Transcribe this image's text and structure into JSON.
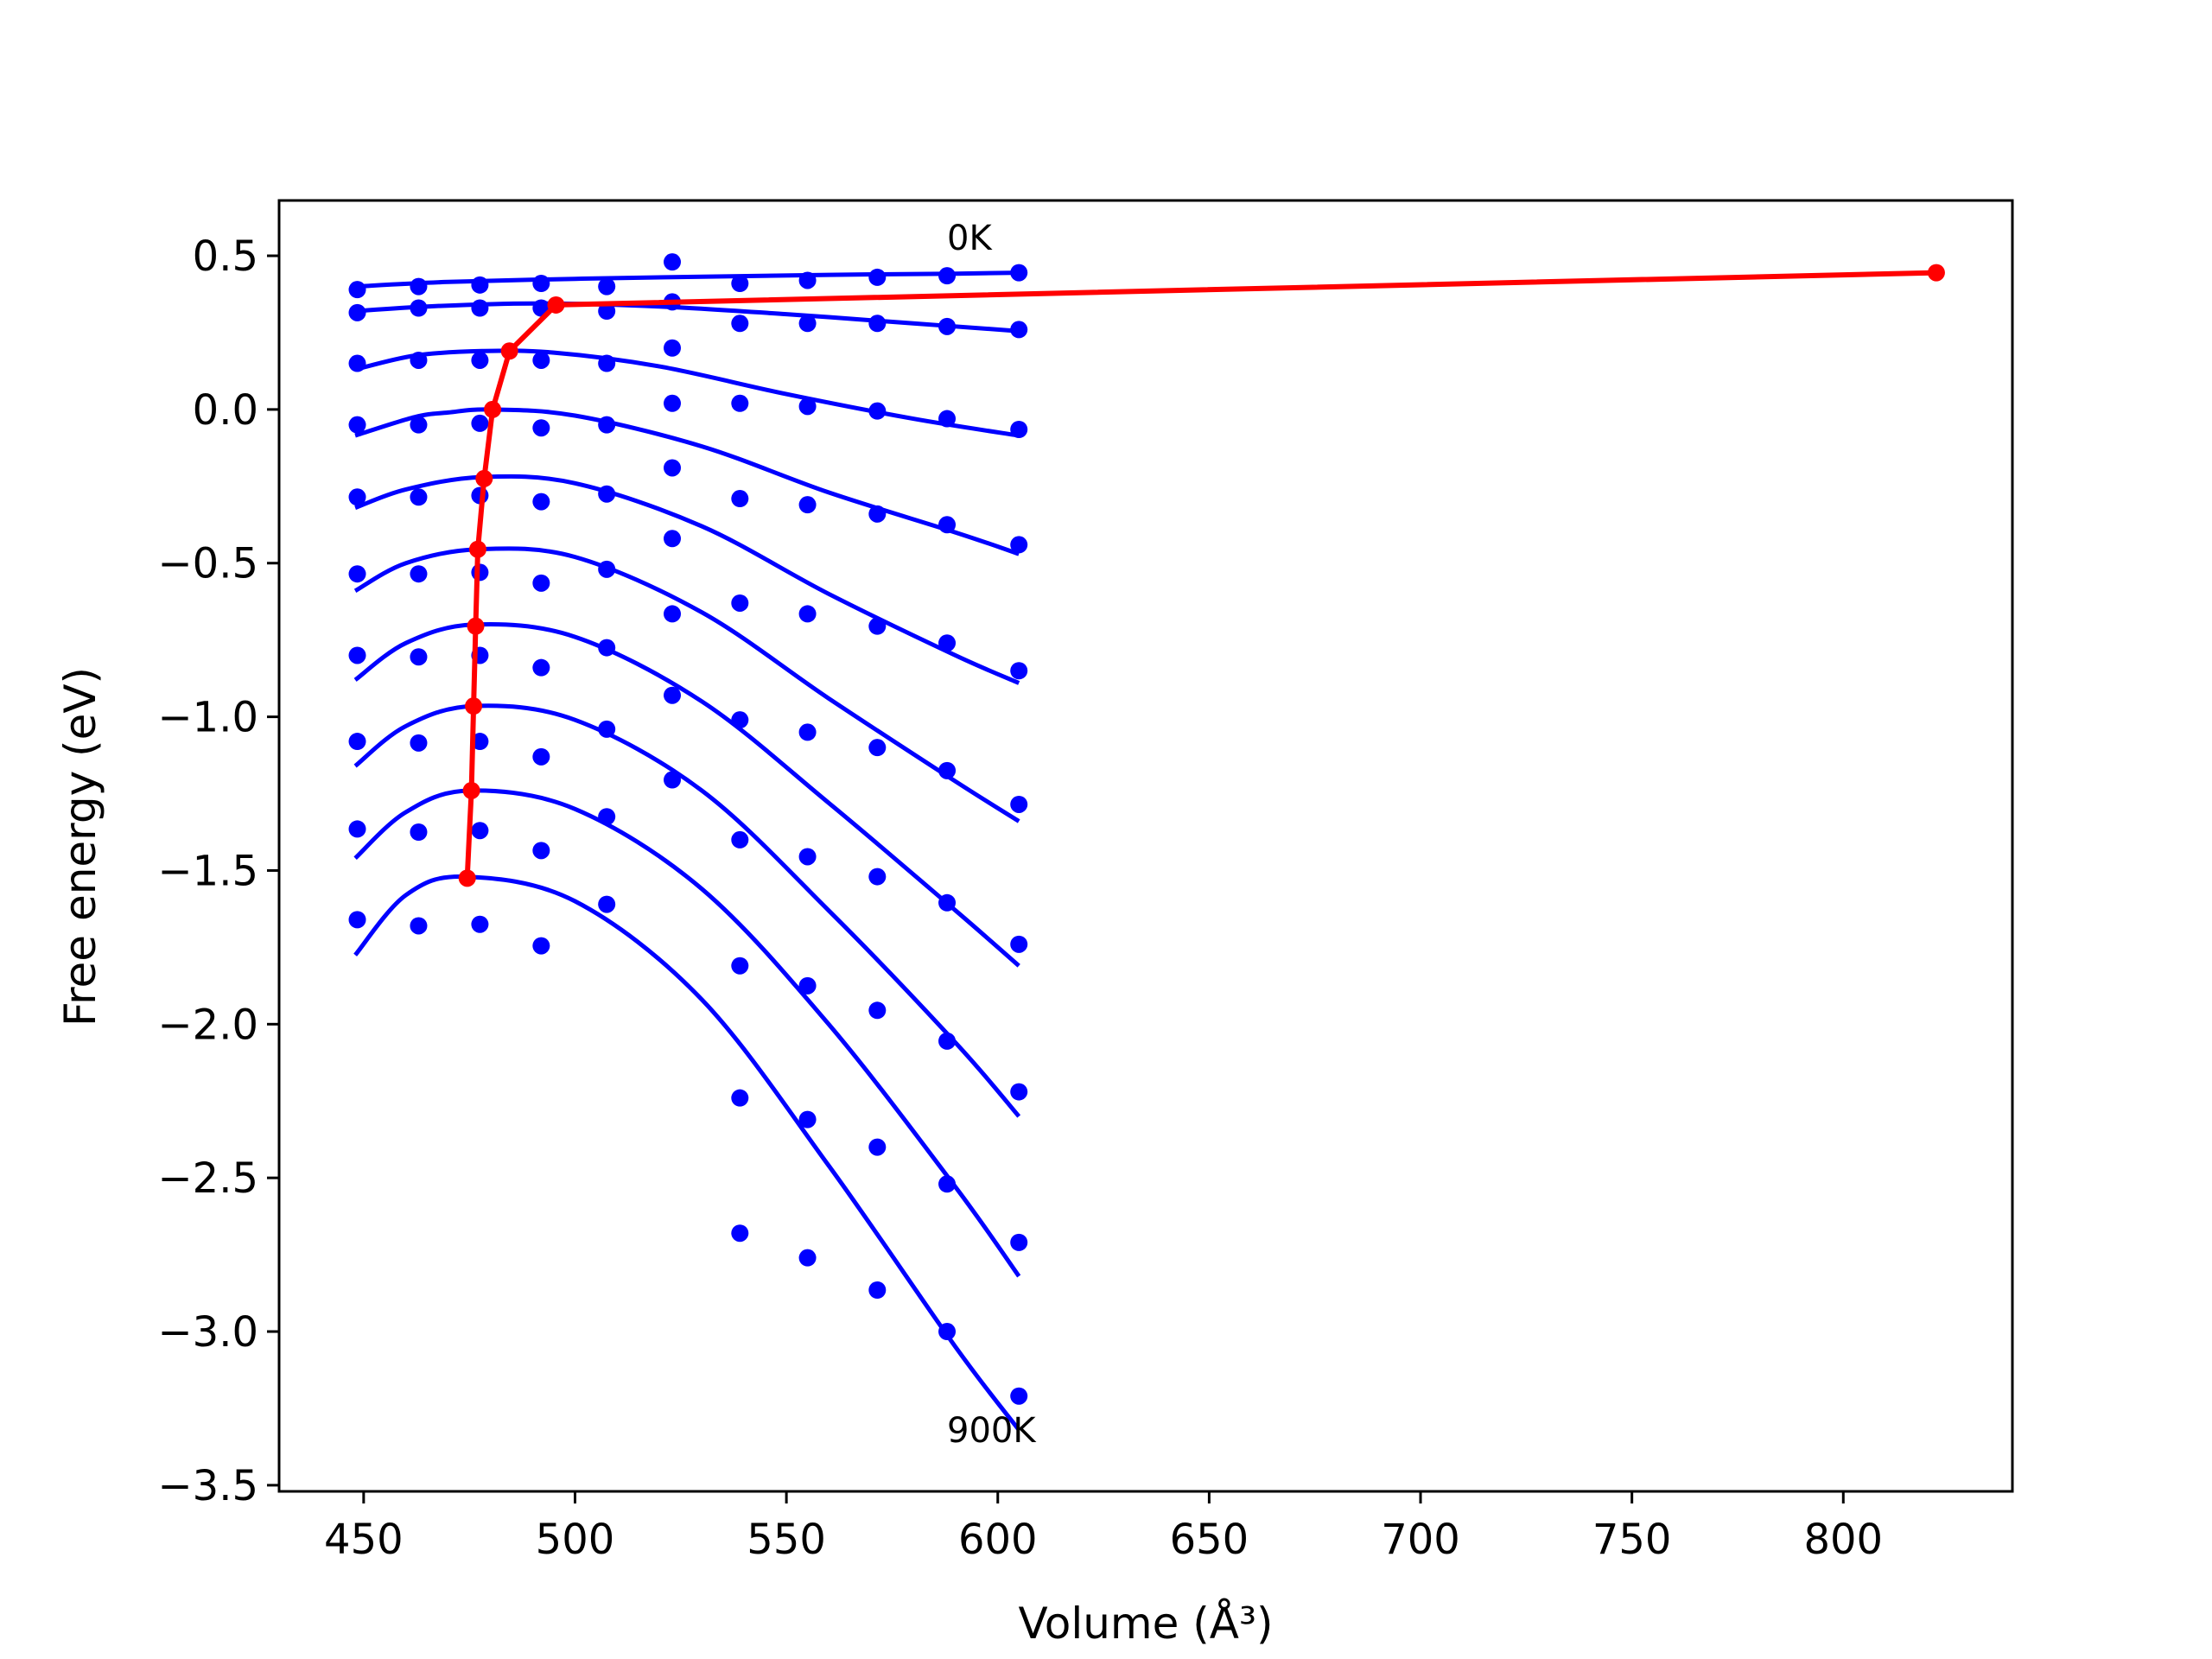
{
  "chart_data": {
    "type": "line",
    "xlabel": "Volume (Å³)",
    "ylabel": "Free energy (eV)",
    "xlim": [
      430,
      840
    ],
    "ylim": [
      -3.52,
      0.68
    ],
    "xticks": [
      450,
      500,
      550,
      600,
      650,
      700,
      750,
      800
    ],
    "yticks": [
      0.5,
      0.0,
      -0.5,
      -1.0,
      -1.5,
      -2.0,
      -2.5,
      -3.0,
      -3.5
    ],
    "xtick_labels": [
      "450",
      "500",
      "550",
      "600",
      "650",
      "700",
      "750",
      "800"
    ],
    "ytick_labels": [
      "0.5",
      "0.0",
      "−0.5",
      "−1.0",
      "−1.5",
      "−2.0",
      "−2.5",
      "−3.0",
      "−3.5"
    ],
    "grid": false,
    "legend": "none",
    "colors": {
      "points": "#0000ff",
      "curves": "#0000ff",
      "minimum_path": "#ff0000"
    },
    "annotations": [
      {
        "text": "0K",
        "x": 588,
        "y": 0.52
      },
      {
        "text": "900K",
        "x": 588,
        "y": -3.36
      }
    ],
    "volumes": [
      448.5,
      463,
      477.5,
      492,
      507.5,
      523,
      539,
      555,
      571.5,
      588,
      605
    ],
    "points": [
      [
        0.39,
        0.4,
        0.405,
        0.41,
        0.4,
        0.48,
        0.41,
        0.42,
        0.43,
        0.435,
        0.445
      ],
      [
        0.315,
        0.33,
        0.33,
        0.33,
        0.32,
        0.35,
        0.28,
        0.28,
        0.28,
        0.27,
        0.26
      ],
      [
        0.15,
        0.16,
        0.16,
        0.16,
        0.15,
        0.2,
        0.02,
        0.02,
        0.01,
        -0.005,
        -0.03,
        -0.065
      ],
      [
        -0.05,
        -0.05,
        -0.045,
        -0.06,
        -0.05,
        -0.19,
        -0.29,
        -0.31,
        -0.34,
        -0.375,
        -0.44
      ],
      [
        -0.285,
        -0.285,
        -0.28,
        -0.3,
        -0.275,
        -0.42,
        -0.63,
        -0.665,
        -0.705,
        -0.76,
        -0.85
      ],
      [
        -0.535,
        -0.535,
        -0.53,
        -0.565,
        -0.52,
        -0.665,
        -1.01,
        -1.05,
        -1.1,
        -1.175,
        -1.285
      ],
      [
        -0.8,
        -0.805,
        -0.8,
        -0.84,
        -0.775,
        -0.93,
        -1.4,
        -1.455,
        -1.52,
        -1.605,
        -1.74
      ],
      [
        -1.08,
        -1.085,
        -1.08,
        -1.13,
        -1.04,
        -1.205,
        -1.81,
        -1.875,
        -1.955,
        -2.055,
        -2.22
      ],
      [
        -1.365,
        -1.375,
        -1.37,
        -1.435,
        -1.325,
        -2.24,
        -2.31,
        -2.4,
        -2.52,
        -2.71
      ],
      [
        -1.66,
        -1.68,
        -1.675,
        -1.745,
        -1.61,
        -2.68,
        -2.76,
        -2.865,
        -3.0,
        -3.21
      ]
    ],
    "point_volumes": [
      [
        448.5,
        463,
        477.5,
        492,
        507.5,
        523,
        539,
        555,
        571.5,
        588,
        605
      ],
      [
        448.5,
        463,
        477.5,
        492,
        507.5,
        523,
        539,
        555,
        571.5,
        588,
        605
      ],
      [
        448.5,
        463,
        477.5,
        492,
        507.5,
        523,
        523,
        539,
        555,
        571.5,
        588,
        605
      ],
      [
        448.5,
        463,
        477.5,
        492,
        507.5,
        523,
        539,
        555,
        571.5,
        588,
        605
      ],
      [
        448.5,
        463,
        477.5,
        492,
        507.5,
        523,
        539,
        555,
        571.5,
        588,
        605
      ],
      [
        448.5,
        463,
        477.5,
        492,
        507.5,
        523,
        539,
        555,
        571.5,
        588,
        605
      ],
      [
        448.5,
        463,
        477.5,
        492,
        507.5,
        523,
        539,
        555,
        571.5,
        588,
        605
      ],
      [
        448.5,
        463,
        477.5,
        492,
        507.5,
        523,
        539,
        555,
        571.5,
        588,
        605
      ],
      [
        448.5,
        463,
        477.5,
        492,
        507.5,
        539,
        555,
        571.5,
        588,
        605
      ],
      [
        448.5,
        463,
        477.5,
        492,
        507.5,
        539,
        555,
        571.5,
        588,
        605
      ]
    ],
    "fit_curves": [
      {
        "x": [
          448,
          470,
          500,
          530,
          560,
          590,
          605
        ],
        "y": [
          0.4,
          0.415,
          0.425,
          0.432,
          0.438,
          0.442,
          0.445
        ]
      },
      {
        "x": [
          448,
          465,
          490,
          520,
          550,
          580,
          605
        ],
        "y": [
          0.32,
          0.335,
          0.345,
          0.335,
          0.31,
          0.28,
          0.255
        ]
      },
      {
        "x": [
          448,
          462,
          478,
          495,
          520,
          550,
          580,
          605
        ],
        "y": [
          0.13,
          0.175,
          0.19,
          0.185,
          0.14,
          0.05,
          -0.03,
          -0.085
        ]
      },
      {
        "x": [
          448,
          462,
          470,
          480,
          500,
          530,
          560,
          590,
          605
        ],
        "y": [
          -0.085,
          -0.025,
          -0.01,
          0.0,
          -0.02,
          -0.12,
          -0.27,
          -0.4,
          -0.47
        ]
      },
      {
        "x": [
          448,
          460,
          478,
          500,
          530,
          560,
          590,
          605
        ],
        "y": [
          -0.32,
          -0.26,
          -0.22,
          -0.24,
          -0.38,
          -0.6,
          -0.8,
          -0.89
        ]
      },
      {
        "x": [
          448,
          460,
          477,
          500,
          530,
          560,
          590,
          605
        ],
        "y": [
          -0.59,
          -0.5,
          -0.455,
          -0.48,
          -0.66,
          -0.94,
          -1.21,
          -1.34
        ]
      },
      {
        "x": [
          448,
          460,
          476,
          500,
          530,
          560,
          590,
          605
        ],
        "y": [
          -0.88,
          -0.76,
          -0.7,
          -0.74,
          -0.95,
          -1.28,
          -1.63,
          -1.81
        ]
      },
      {
        "x": [
          448,
          460,
          476,
          500,
          530,
          560,
          590,
          605
        ],
        "y": [
          -1.16,
          -1.03,
          -0.965,
          -1.01,
          -1.24,
          -1.63,
          -2.06,
          -2.3
        ]
      },
      {
        "x": [
          448,
          460,
          475,
          500,
          530,
          560,
          590,
          605
        ],
        "y": [
          -1.46,
          -1.31,
          -1.24,
          -1.3,
          -1.56,
          -2.0,
          -2.53,
          -2.82
        ]
      },
      {
        "x": [
          448,
          460,
          474,
          500,
          530,
          560,
          590,
          605
        ],
        "y": [
          -1.775,
          -1.58,
          -1.52,
          -1.6,
          -1.92,
          -2.46,
          -3.05,
          -3.32
        ]
      }
    ],
    "minimum_path": {
      "x": [
        822,
        495.5,
        484.5,
        480.5,
        478.5,
        477,
        476.5,
        476,
        475.5,
        474.5
      ],
      "y": [
        0.445,
        0.34,
        0.19,
        0.0,
        -0.225,
        -0.455,
        -0.705,
        -0.965,
        -1.24,
        -1.525
      ]
    }
  }
}
